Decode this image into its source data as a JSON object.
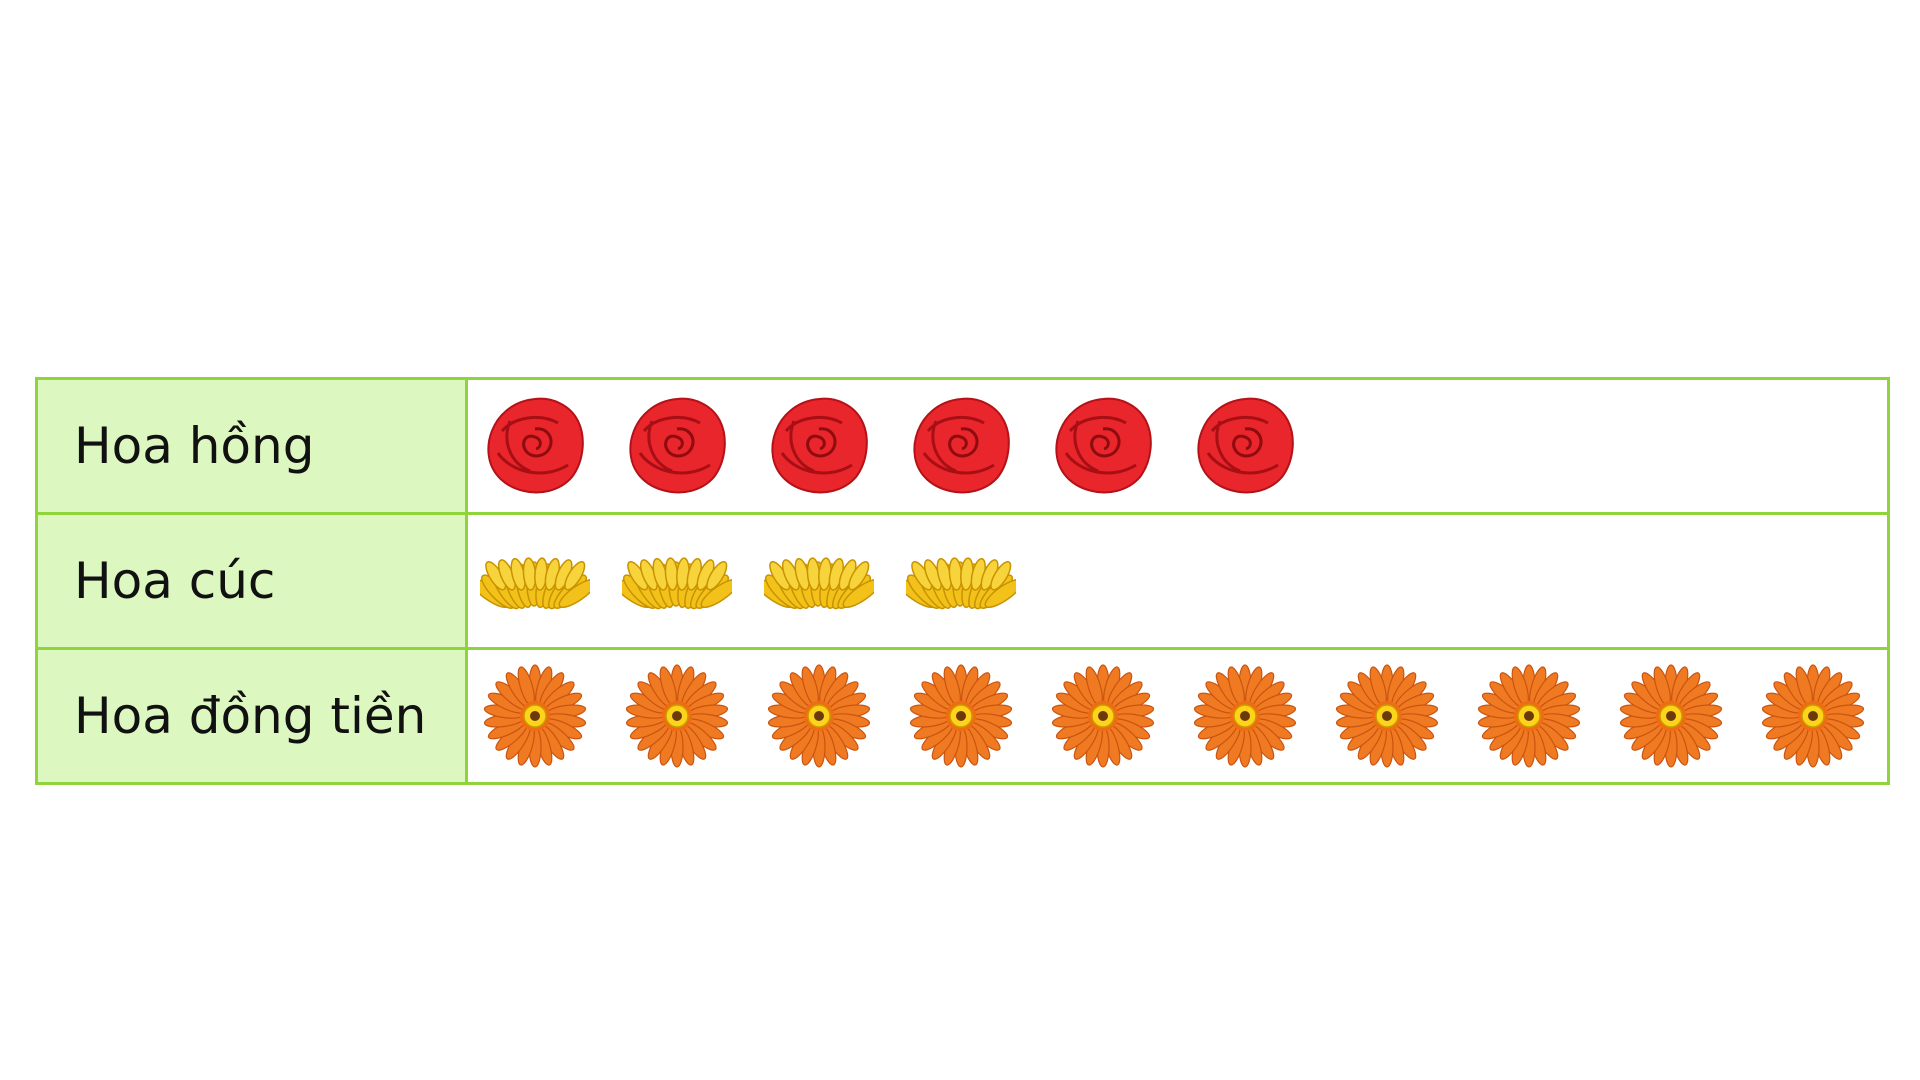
{
  "chart_data": {
    "type": "pictograph",
    "categories": [
      "Hoa hồng",
      "Hoa cúc",
      "Hoa đồng tiền"
    ],
    "values": [
      6,
      4,
      10
    ],
    "icons": [
      "rose-icon",
      "chrysanthemum-icon",
      "gerbera-icon"
    ],
    "colors": {
      "border": "#8fd43a",
      "label_background": "#dcf7c0",
      "rose": "#e8262b",
      "chrysanthemum": "#f2c21a",
      "gerbera": "#f07a22"
    }
  },
  "rows": [
    {
      "label": "Hoa hồng"
    },
    {
      "label": "Hoa cúc"
    },
    {
      "label": "Hoa đồng tiền"
    }
  ]
}
